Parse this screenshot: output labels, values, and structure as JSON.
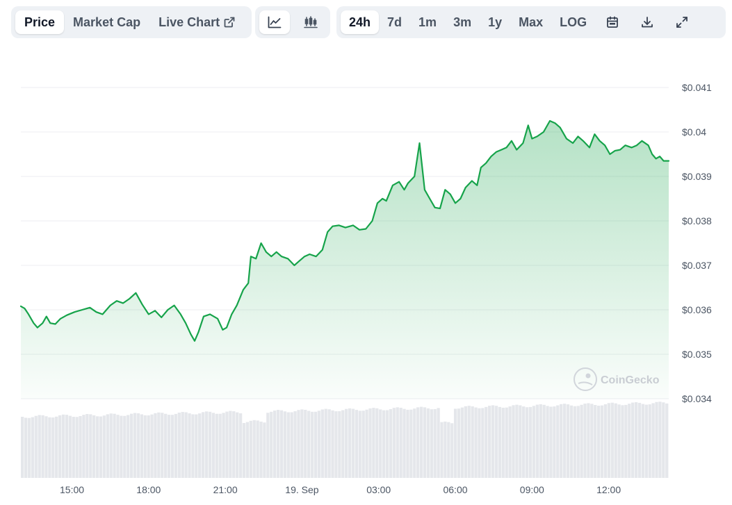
{
  "toolbar": {
    "view_tabs": [
      {
        "label": "Price",
        "active": true
      },
      {
        "label": "Market Cap",
        "active": false
      },
      {
        "label": "Live Chart",
        "active": false,
        "icon": "external-link-icon"
      }
    ],
    "chart_types": [
      {
        "icon": "line-chart-icon",
        "active": true
      },
      {
        "icon": "candlestick-chart-icon",
        "active": false
      }
    ],
    "ranges": [
      {
        "label": "24h",
        "active": true
      },
      {
        "label": "7d",
        "active": false
      },
      {
        "label": "1m",
        "active": false
      },
      {
        "label": "3m",
        "active": false
      },
      {
        "label": "1y",
        "active": false
      },
      {
        "label": "Max",
        "active": false
      },
      {
        "label": "LOG",
        "active": false
      }
    ],
    "tools": [
      {
        "icon": "calendar-icon"
      },
      {
        "icon": "download-icon"
      },
      {
        "icon": "expand-icon"
      }
    ]
  },
  "watermark": "CoinGecko",
  "chart_data": {
    "type": "area",
    "x_unit": "hours since 13:00",
    "x_tick_labels": [
      "15:00",
      "18:00",
      "21:00",
      "19. Sep",
      "03:00",
      "06:00",
      "09:00",
      "12:00"
    ],
    "y_tick_labels": [
      "$0.041",
      "$0.04",
      "$0.039",
      "$0.038",
      "$0.037",
      "$0.036",
      "$0.035",
      "$0.034"
    ],
    "ylim": [
      0.034,
      0.041
    ],
    "grid": true,
    "colors": {
      "line": "#16a34a",
      "fill": "#16a34a",
      "volume": "#e5e7eb"
    },
    "series": [
      {
        "values": [
          [
            13.0,
            0.03608
          ],
          [
            13.15,
            0.03603
          ],
          [
            13.3,
            0.0359
          ],
          [
            13.5,
            0.0357
          ],
          [
            13.65,
            0.0356
          ],
          [
            13.85,
            0.0357
          ],
          [
            14.0,
            0.03585
          ],
          [
            14.15,
            0.0357
          ],
          [
            14.35,
            0.03568
          ],
          [
            14.55,
            0.0358
          ],
          [
            14.8,
            0.03588
          ],
          [
            15.1,
            0.03595
          ],
          [
            15.4,
            0.036
          ],
          [
            15.7,
            0.03605
          ],
          [
            15.95,
            0.03595
          ],
          [
            16.2,
            0.0359
          ],
          [
            16.5,
            0.0361
          ],
          [
            16.75,
            0.0362
          ],
          [
            17.0,
            0.03615
          ],
          [
            17.25,
            0.03625
          ],
          [
            17.5,
            0.03638
          ],
          [
            17.75,
            0.03612
          ],
          [
            18.0,
            0.0359
          ],
          [
            18.25,
            0.03598
          ],
          [
            18.5,
            0.03583
          ],
          [
            18.75,
            0.036
          ],
          [
            19.0,
            0.0361
          ],
          [
            19.25,
            0.0359
          ],
          [
            19.45,
            0.0357
          ],
          [
            19.65,
            0.03545
          ],
          [
            19.8,
            0.0353
          ],
          [
            19.95,
            0.0355
          ],
          [
            20.15,
            0.03585
          ],
          [
            20.4,
            0.0359
          ],
          [
            20.7,
            0.0358
          ],
          [
            20.9,
            0.03555
          ],
          [
            21.05,
            0.0356
          ],
          [
            21.25,
            0.0359
          ],
          [
            21.45,
            0.0361
          ],
          [
            21.7,
            0.03645
          ],
          [
            21.9,
            0.0366
          ],
          [
            22.0,
            0.0372
          ],
          [
            22.2,
            0.03715
          ],
          [
            22.4,
            0.0375
          ],
          [
            22.6,
            0.0373
          ],
          [
            22.8,
            0.0372
          ],
          [
            23.0,
            0.0373
          ],
          [
            23.2,
            0.0372
          ],
          [
            23.45,
            0.03715
          ],
          [
            23.7,
            0.037
          ],
          [
            23.9,
            0.0371
          ],
          [
            24.1,
            0.0372
          ],
          [
            24.3,
            0.03725
          ],
          [
            24.55,
            0.0372
          ],
          [
            24.8,
            0.03735
          ],
          [
            25.0,
            0.03775
          ],
          [
            25.2,
            0.03788
          ],
          [
            25.45,
            0.0379
          ],
          [
            25.7,
            0.03785
          ],
          [
            26.0,
            0.0379
          ],
          [
            26.25,
            0.0378
          ],
          [
            26.5,
            0.03782
          ],
          [
            26.75,
            0.038
          ],
          [
            26.95,
            0.0384
          ],
          [
            27.15,
            0.0385
          ],
          [
            27.3,
            0.03845
          ],
          [
            27.55,
            0.0388
          ],
          [
            27.8,
            0.03888
          ],
          [
            28.0,
            0.0387
          ],
          [
            28.15,
            0.03885
          ],
          [
            28.4,
            0.039
          ],
          [
            28.6,
            0.03975
          ],
          [
            28.8,
            0.0387
          ],
          [
            29.0,
            0.0385
          ],
          [
            29.2,
            0.0383
          ],
          [
            29.4,
            0.03828
          ],
          [
            29.6,
            0.0387
          ],
          [
            29.8,
            0.0386
          ],
          [
            30.0,
            0.0384
          ],
          [
            30.2,
            0.0385
          ],
          [
            30.4,
            0.03875
          ],
          [
            30.65,
            0.0389
          ],
          [
            30.85,
            0.0388
          ],
          [
            31.0,
            0.0392
          ],
          [
            31.2,
            0.0393
          ],
          [
            31.4,
            0.03945
          ],
          [
            31.6,
            0.03955
          ],
          [
            31.8,
            0.0396
          ],
          [
            32.0,
            0.03965
          ],
          [
            32.2,
            0.0398
          ],
          [
            32.4,
            0.0396
          ],
          [
            32.65,
            0.03975
          ],
          [
            32.85,
            0.04015
          ],
          [
            33.0,
            0.03985
          ],
          [
            33.2,
            0.0399
          ],
          [
            33.45,
            0.04
          ],
          [
            33.7,
            0.04025
          ],
          [
            33.9,
            0.0402
          ],
          [
            34.1,
            0.0401
          ],
          [
            34.35,
            0.03985
          ],
          [
            34.6,
            0.03975
          ],
          [
            34.8,
            0.0399
          ],
          [
            35.0,
            0.0398
          ],
          [
            35.25,
            0.03965
          ],
          [
            35.45,
            0.03995
          ],
          [
            35.65,
            0.0398
          ],
          [
            35.85,
            0.0397
          ],
          [
            36.05,
            0.0395
          ],
          [
            36.25,
            0.03958
          ],
          [
            36.45,
            0.0396
          ],
          [
            36.65,
            0.0397
          ],
          [
            36.9,
            0.03965
          ],
          [
            37.1,
            0.0397
          ],
          [
            37.3,
            0.0398
          ],
          [
            37.55,
            0.0397
          ],
          [
            37.7,
            0.0395
          ],
          [
            37.85,
            0.0394
          ],
          [
            38.0,
            0.03945
          ],
          [
            38.15,
            0.03935
          ],
          [
            38.35,
            0.03935
          ]
        ]
      }
    ]
  }
}
